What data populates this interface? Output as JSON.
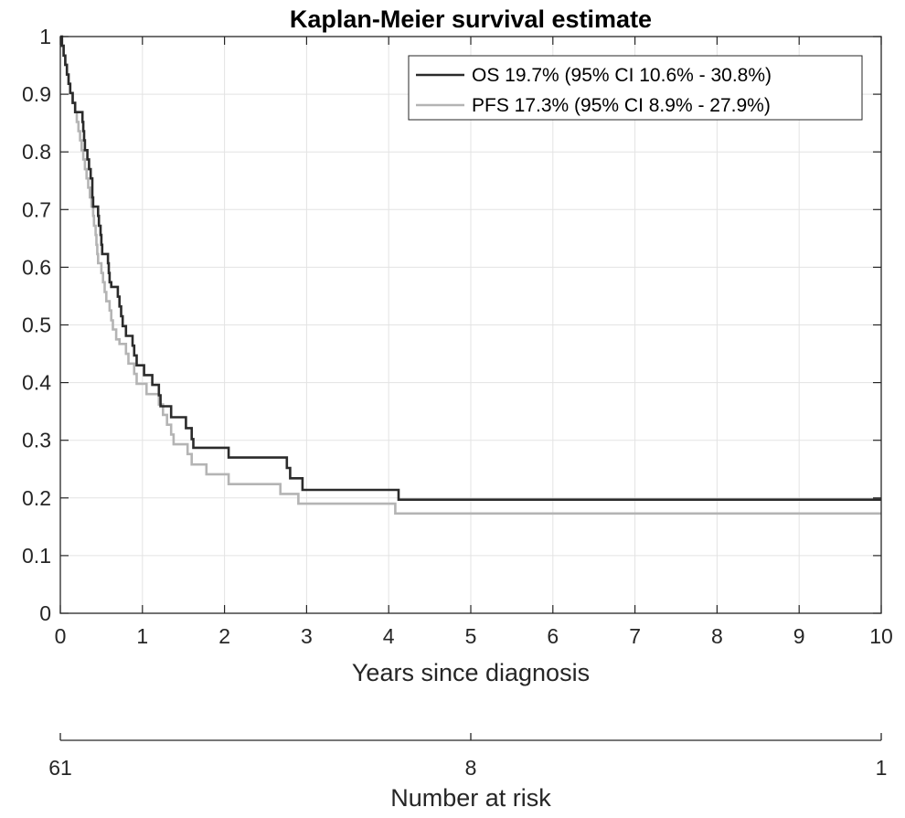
{
  "chart_data": {
    "type": "line",
    "title": "Kaplan-Meier survival estimate",
    "xlabel": "Years since diagnosis",
    "ylabel": "",
    "xlim": [
      0,
      10
    ],
    "ylim": [
      0,
      1
    ],
    "xticks": [
      "0",
      "1",
      "2",
      "3",
      "4",
      "5",
      "6",
      "7",
      "8",
      "9",
      "10"
    ],
    "yticks": [
      "0",
      "0.1",
      "0.2",
      "0.3",
      "0.4",
      "0.5",
      "0.6",
      "0.7",
      "0.8",
      "0.9",
      "1"
    ],
    "grid": true,
    "legend_position": "top-right",
    "series": [
      {
        "name": "OS 19.7% (95% CI 10.6% - 30.8%)",
        "color": "#2b2b2b",
        "step_points": [
          [
            0,
            1
          ],
          [
            0.02,
            0.984
          ],
          [
            0.04,
            0.967
          ],
          [
            0.06,
            0.951
          ],
          [
            0.08,
            0.934
          ],
          [
            0.1,
            0.918
          ],
          [
            0.12,
            0.902
          ],
          [
            0.15,
            0.885
          ],
          [
            0.18,
            0.869
          ],
          [
            0.27,
            0.852
          ],
          [
            0.28,
            0.836
          ],
          [
            0.29,
            0.82
          ],
          [
            0.3,
            0.803
          ],
          [
            0.33,
            0.787
          ],
          [
            0.35,
            0.77
          ],
          [
            0.37,
            0.754
          ],
          [
            0.39,
            0.721
          ],
          [
            0.4,
            0.705
          ],
          [
            0.46,
            0.689
          ],
          [
            0.47,
            0.672
          ],
          [
            0.49,
            0.656
          ],
          [
            0.5,
            0.639
          ],
          [
            0.51,
            0.623
          ],
          [
            0.58,
            0.607
          ],
          [
            0.59,
            0.59
          ],
          [
            0.6,
            0.574
          ],
          [
            0.62,
            0.566
          ],
          [
            0.7,
            0.549
          ],
          [
            0.72,
            0.532
          ],
          [
            0.74,
            0.515
          ],
          [
            0.76,
            0.498
          ],
          [
            0.8,
            0.481
          ],
          [
            0.88,
            0.464
          ],
          [
            0.9,
            0.447
          ],
          [
            0.93,
            0.43
          ],
          [
            1.02,
            0.413
          ],
          [
            1.12,
            0.396
          ],
          [
            1.2,
            0.378
          ],
          [
            1.22,
            0.359
          ],
          [
            1.35,
            0.34
          ],
          [
            1.53,
            0.321
          ],
          [
            1.6,
            0.302
          ],
          [
            1.62,
            0.287
          ],
          [
            2.05,
            0.27
          ],
          [
            2.76,
            0.252
          ],
          [
            2.8,
            0.234
          ],
          [
            2.95,
            0.214
          ],
          [
            4.12,
            0.197
          ],
          [
            10,
            0.197
          ]
        ]
      },
      {
        "name": "PFS 17.3% (95% CI 8.9% - 27.9%)",
        "color": "#b4b4b4",
        "step_points": [
          [
            0,
            1
          ],
          [
            0.02,
            0.984
          ],
          [
            0.04,
            0.967
          ],
          [
            0.06,
            0.951
          ],
          [
            0.08,
            0.934
          ],
          [
            0.1,
            0.918
          ],
          [
            0.12,
            0.902
          ],
          [
            0.15,
            0.885
          ],
          [
            0.18,
            0.869
          ],
          [
            0.2,
            0.852
          ],
          [
            0.22,
            0.836
          ],
          [
            0.24,
            0.82
          ],
          [
            0.26,
            0.803
          ],
          [
            0.28,
            0.787
          ],
          [
            0.3,
            0.77
          ],
          [
            0.32,
            0.754
          ],
          [
            0.34,
            0.738
          ],
          [
            0.36,
            0.721
          ],
          [
            0.38,
            0.705
          ],
          [
            0.4,
            0.689
          ],
          [
            0.41,
            0.672
          ],
          [
            0.43,
            0.656
          ],
          [
            0.44,
            0.639
          ],
          [
            0.45,
            0.623
          ],
          [
            0.46,
            0.607
          ],
          [
            0.5,
            0.59
          ],
          [
            0.52,
            0.574
          ],
          [
            0.54,
            0.557
          ],
          [
            0.56,
            0.541
          ],
          [
            0.6,
            0.525
          ],
          [
            0.62,
            0.508
          ],
          [
            0.64,
            0.492
          ],
          [
            0.68,
            0.475
          ],
          [
            0.72,
            0.467
          ],
          [
            0.8,
            0.45
          ],
          [
            0.83,
            0.433
          ],
          [
            0.9,
            0.415
          ],
          [
            0.93,
            0.398
          ],
          [
            1.05,
            0.38
          ],
          [
            1.2,
            0.362
          ],
          [
            1.25,
            0.344
          ],
          [
            1.3,
            0.327
          ],
          [
            1.35,
            0.31
          ],
          [
            1.38,
            0.293
          ],
          [
            1.55,
            0.276
          ],
          [
            1.6,
            0.258
          ],
          [
            1.78,
            0.241
          ],
          [
            2.05,
            0.224
          ],
          [
            2.68,
            0.207
          ],
          [
            2.9,
            0.19
          ],
          [
            4.08,
            0.173
          ],
          [
            10,
            0.173
          ]
        ]
      }
    ]
  },
  "risk_table": {
    "label": "Number at risk",
    "ticks": [
      {
        "x": 0,
        "value": "61"
      },
      {
        "x": 5,
        "value": "8"
      },
      {
        "x": 10,
        "value": "1"
      }
    ]
  }
}
